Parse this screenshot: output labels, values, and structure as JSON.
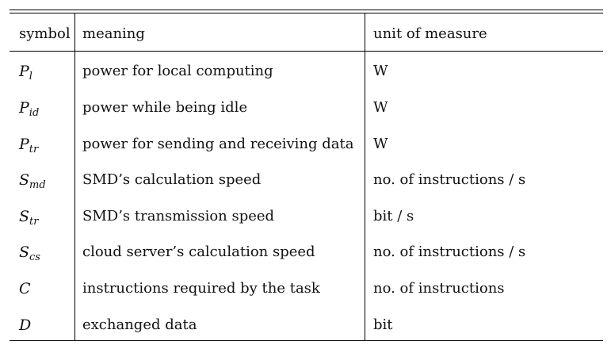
{
  "table": {
    "headers": {
      "symbol": "symbol",
      "meaning": "meaning",
      "unit": "unit of measure"
    },
    "rows": [
      {
        "sym": "P",
        "sub": "l",
        "meaning": "power for local computing",
        "unit": "W"
      },
      {
        "sym": "P",
        "sub": "id",
        "meaning": "power while being idle",
        "unit": "W"
      },
      {
        "sym": "P",
        "sub": "tr",
        "meaning": "power for sending and receiving data",
        "unit": "W"
      },
      {
        "sym": "S",
        "sub": "md",
        "meaning": "SMD’s calculation speed",
        "unit": "no. of instructions / s"
      },
      {
        "sym": "S",
        "sub": "tr",
        "meaning": "SMD’s transmission speed",
        "unit": "bit / s"
      },
      {
        "sym": "S",
        "sub": "cs",
        "meaning": "cloud server’s calculation speed",
        "unit": "no. of instructions / s"
      },
      {
        "sym": "C",
        "sub": "",
        "meaning": "instructions required by the task",
        "unit": "no. of instructions"
      },
      {
        "sym": "D",
        "sub": "",
        "meaning": "exchanged data",
        "unit": "bit"
      }
    ]
  }
}
